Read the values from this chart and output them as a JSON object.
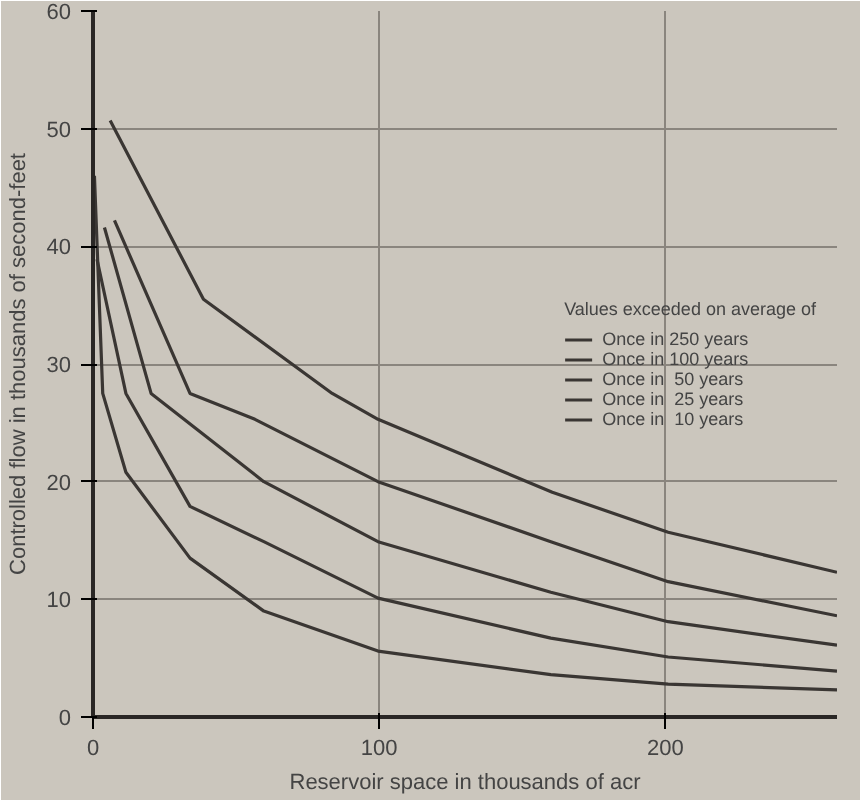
{
  "chart_data": {
    "type": "line",
    "xlabel": "Reservoir space in thousands of acr",
    "ylabel": "Controlled flow in thousands of second-feet",
    "legend_title": "Values exceeded on average of",
    "xlim": [
      0,
      260
    ],
    "ylim": [
      0,
      60
    ],
    "xticks": [
      0,
      100,
      200
    ],
    "yticks": [
      0,
      10,
      20,
      30,
      40,
      50,
      60
    ],
    "grid": true,
    "legend": "right",
    "line_style": "solid",
    "series": [
      {
        "name": "Once in 250 years",
        "color": "#3a3633",
        "x": [
          6,
          38.6,
          83.6,
          99.6,
          160.5,
          201,
          260
        ],
        "values": [
          50.7,
          35.5,
          27.5,
          25.3,
          19.1,
          15.7,
          12.3
        ]
      },
      {
        "name": "Once in 100 years",
        "color": "#3a3633",
        "x": [
          7.5,
          33.9,
          56.6,
          99.6,
          160,
          201,
          260
        ],
        "values": [
          42.2,
          27.5,
          25.3,
          20,
          14.9,
          11.5,
          8.6
        ]
      },
      {
        "name": "Once in  50 years",
        "color": "#3a3633",
        "x": [
          4,
          20.3,
          59.7,
          99.6,
          160,
          201,
          260
        ],
        "values": [
          41.6,
          27.5,
          20,
          14.9,
          10.6,
          8.1,
          6.1
        ]
      },
      {
        "name": "Once in  25 years",
        "color": "#3a3633",
        "x": [
          1.4,
          11.5,
          33.9,
          59.7,
          99.6,
          160,
          201,
          260
        ],
        "values": [
          38.9,
          27.5,
          17.9,
          14.9,
          10.1,
          6.7,
          5.1,
          3.9
        ]
      },
      {
        "name": "Once in  10 years",
        "color": "#3a3633",
        "x": [
          0.5,
          3.4,
          11.5,
          33.9,
          59.7,
          99.6,
          160,
          201,
          260
        ],
        "values": [
          46,
          27.5,
          20.8,
          13.5,
          9,
          5.6,
          3.6,
          2.8,
          2.3
        ]
      }
    ]
  }
}
